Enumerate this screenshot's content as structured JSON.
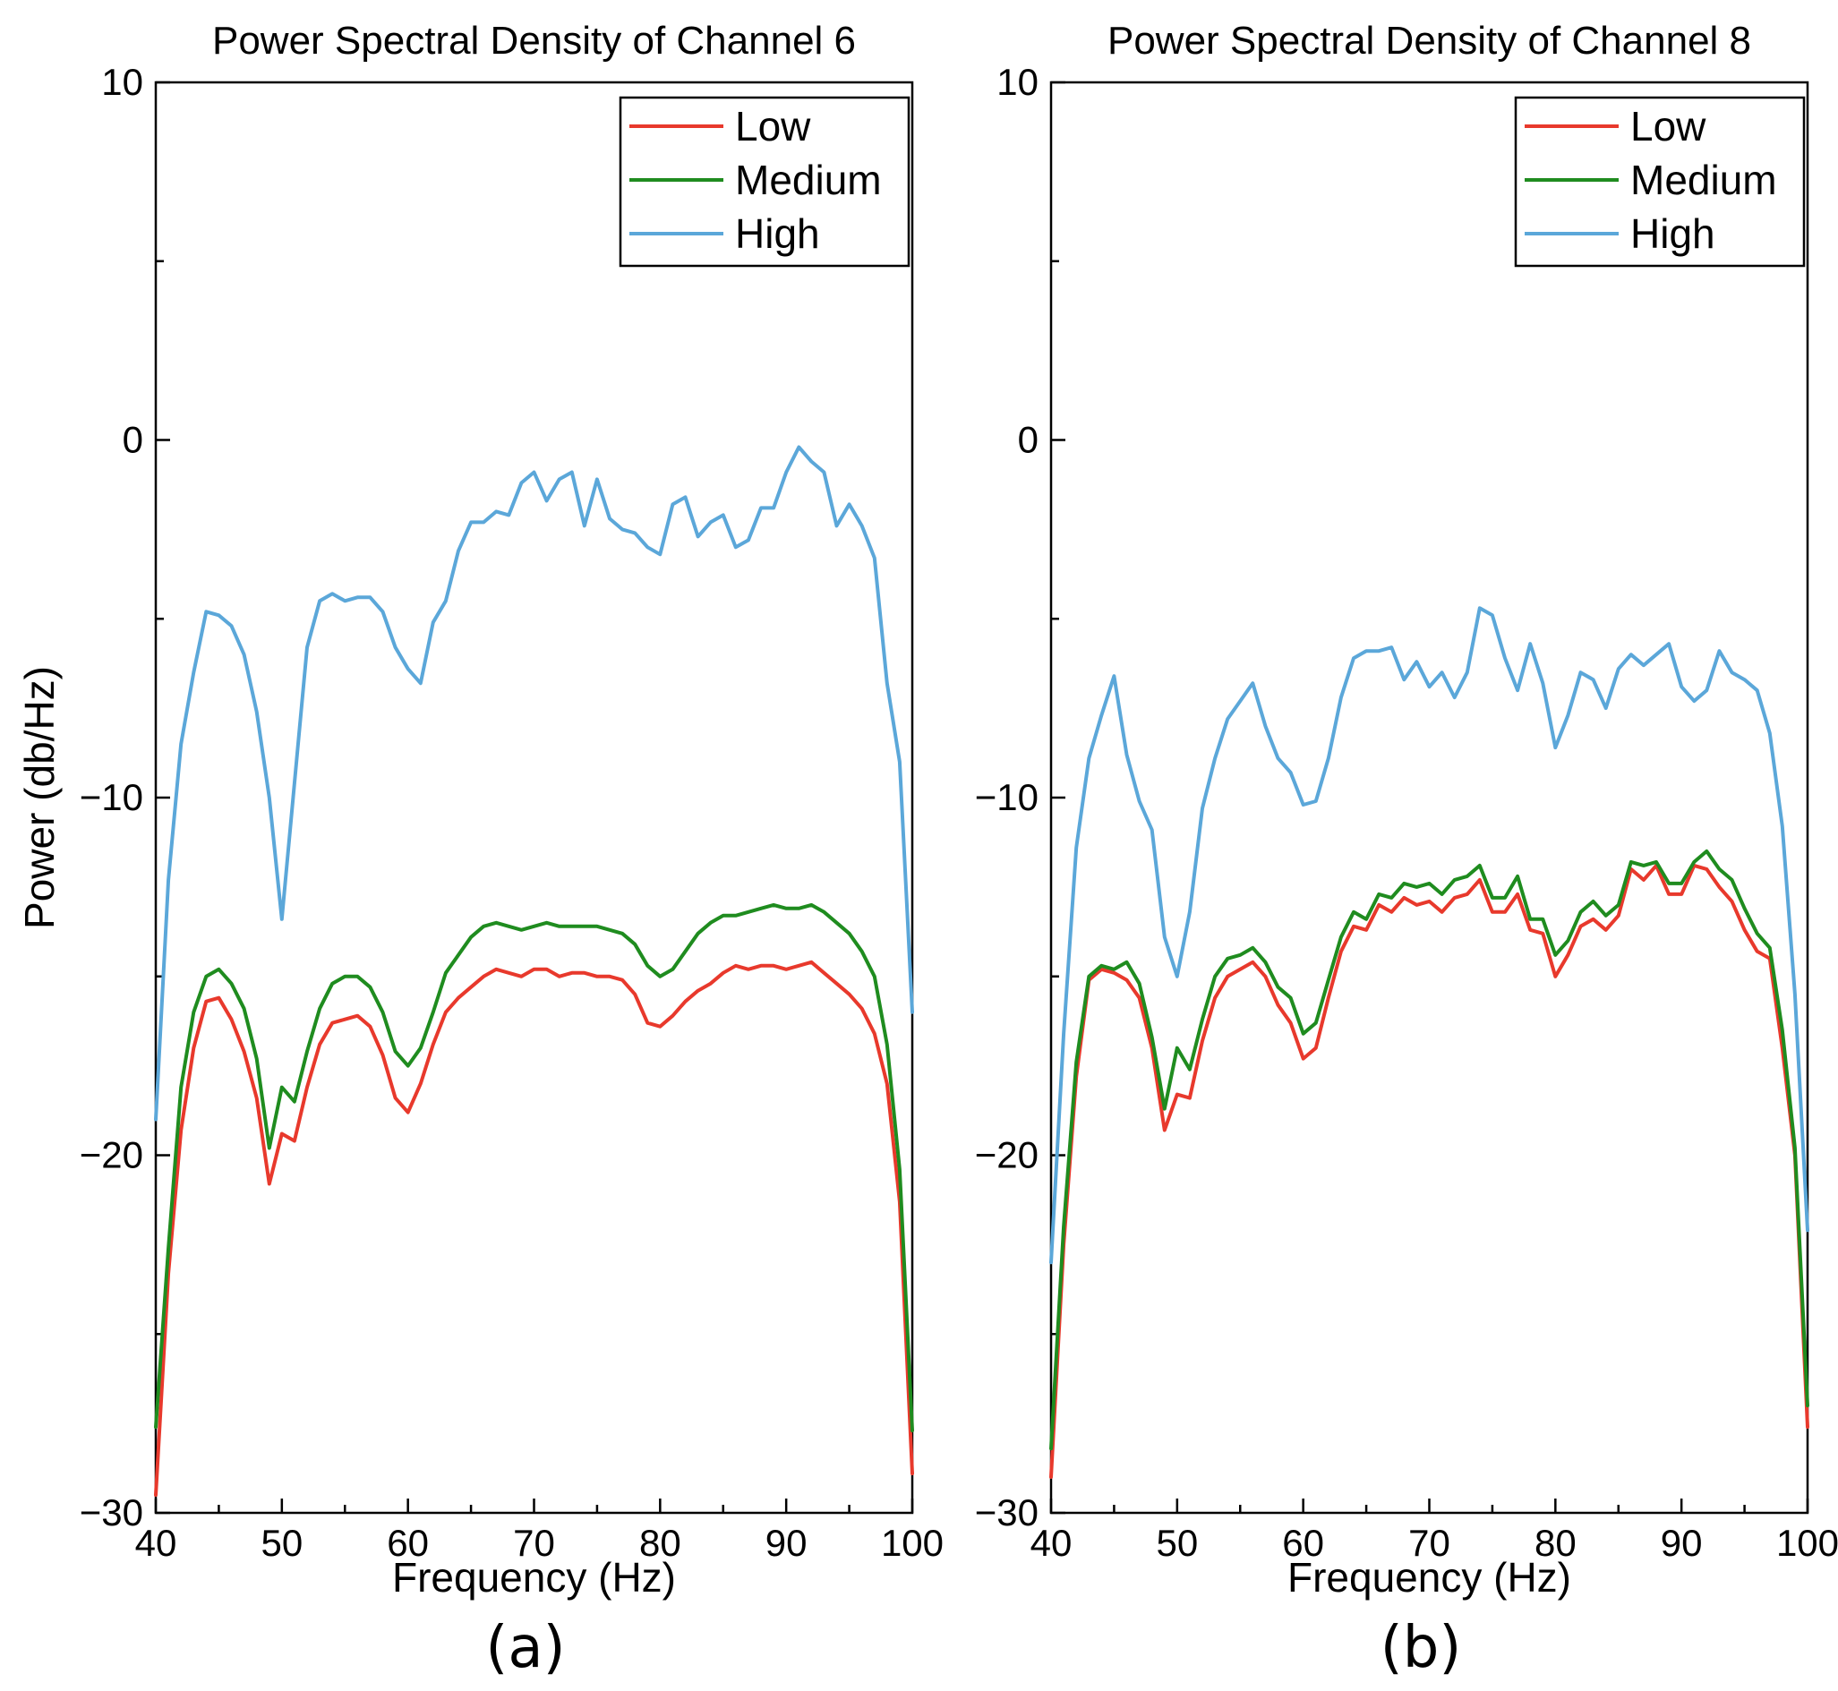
{
  "figure": {
    "panel_labels": [
      "(a)",
      "(b)"
    ]
  },
  "chart_data": [
    {
      "type": "line",
      "title": "Power Spectral Density of Channel 6",
      "xlabel": "Frequency (Hz)",
      "ylabel": "Power (db/Hz)",
      "xlim": [
        40,
        100
      ],
      "ylim": [
        -30,
        10
      ],
      "xticks": [
        40,
        50,
        60,
        70,
        80,
        90,
        100
      ],
      "yticks": [
        -30,
        -20,
        -10,
        0,
        10
      ],
      "ytick_labels": [
        "−30",
        "−20",
        "−10",
        "0",
        "10"
      ],
      "grid": false,
      "legend": "top-right",
      "x": [
        40,
        41,
        42,
        43,
        44,
        45,
        46,
        47,
        48,
        49,
        50,
        51,
        52,
        53,
        54,
        55,
        56,
        57,
        58,
        59,
        60,
        61,
        62,
        63,
        64,
        65,
        66,
        67,
        68,
        69,
        70,
        71,
        72,
        73,
        74,
        75,
        76,
        77,
        78,
        79,
        80,
        81,
        82,
        83,
        84,
        85,
        86,
        87,
        88,
        89,
        90,
        91,
        92,
        93,
        94,
        95,
        96,
        97,
        98,
        99,
        100
      ],
      "series": [
        {
          "name": "Low",
          "color": "#e8392c",
          "values": [
            -29.5,
            -23.3,
            -19.3,
            -17.0,
            -15.7,
            -15.6,
            -16.2,
            -17.1,
            -18.4,
            -20.8,
            -19.4,
            -19.6,
            -18.1,
            -16.9,
            -16.3,
            -16.2,
            -16.1,
            -16.4,
            -17.2,
            -18.4,
            -18.8,
            -18.0,
            -16.9,
            -16.0,
            -15.6,
            -15.3,
            -15.0,
            -14.8,
            -14.9,
            -15.0,
            -14.8,
            -14.8,
            -15.0,
            -14.9,
            -14.9,
            -15.0,
            -15.0,
            -15.1,
            -15.5,
            -16.3,
            -16.4,
            -16.1,
            -15.7,
            -15.4,
            -15.2,
            -14.9,
            -14.7,
            -14.8,
            -14.7,
            -14.7,
            -14.8,
            -14.7,
            -14.6,
            -14.9,
            -15.2,
            -15.5,
            -15.9,
            -16.6,
            -18.0,
            -21.3,
            -28.9
          ]
        },
        {
          "name": "Medium",
          "color": "#1f8c1f",
          "values": [
            -27.6,
            -22.6,
            -18.1,
            -16.0,
            -15.0,
            -14.8,
            -15.2,
            -15.9,
            -17.3,
            -19.8,
            -18.1,
            -18.5,
            -17.1,
            -15.9,
            -15.2,
            -15.0,
            -15.0,
            -15.3,
            -16.0,
            -17.1,
            -17.5,
            -17.0,
            -16.0,
            -14.9,
            -14.4,
            -13.9,
            -13.6,
            -13.5,
            -13.6,
            -13.7,
            -13.6,
            -13.5,
            -13.6,
            -13.6,
            -13.6,
            -13.6,
            -13.7,
            -13.8,
            -14.1,
            -14.7,
            -15.0,
            -14.8,
            -14.3,
            -13.8,
            -13.5,
            -13.3,
            -13.3,
            -13.2,
            -13.1,
            -13.0,
            -13.1,
            -13.1,
            -13.0,
            -13.2,
            -13.5,
            -13.8,
            -14.3,
            -15.0,
            -16.9,
            -20.4,
            -27.7
          ]
        },
        {
          "name": "High",
          "color": "#5ba7d9",
          "values": [
            -19.0,
            -12.3,
            -8.5,
            -6.5,
            -4.8,
            -4.9,
            -5.2,
            -6.0,
            -7.6,
            -10.0,
            -13.4,
            -9.6,
            -5.8,
            -4.5,
            -4.3,
            -4.5,
            -4.4,
            -4.4,
            -4.8,
            -5.8,
            -6.4,
            -6.8,
            -5.1,
            -4.5,
            -3.1,
            -2.3,
            -2.3,
            -2.0,
            -2.1,
            -1.2,
            -0.9,
            -1.7,
            -1.1,
            -0.9,
            -2.4,
            -1.1,
            -2.2,
            -2.5,
            -2.6,
            -3.0,
            -3.2,
            -1.8,
            -1.6,
            -2.7,
            -2.3,
            -2.1,
            -3.0,
            -2.8,
            -1.9,
            -1.9,
            -0.9,
            -0.2,
            -0.6,
            -0.9,
            -2.4,
            -1.8,
            -2.4,
            -3.3,
            -6.8,
            -9.0,
            -16.0
          ]
        }
      ]
    },
    {
      "type": "line",
      "title": "Power Spectral Density of Channel 8",
      "xlabel": "Frequency (Hz)",
      "ylabel": "",
      "xlim": [
        40,
        100
      ],
      "ylim": [
        -30,
        10
      ],
      "xticks": [
        40,
        50,
        60,
        70,
        80,
        90,
        100
      ],
      "yticks": [
        -30,
        -20,
        -10,
        0,
        10
      ],
      "ytick_labels": [
        "−30",
        "−20",
        "−10",
        "0",
        "10"
      ],
      "grid": false,
      "legend": "top-right",
      "x": [
        40,
        41,
        42,
        43,
        44,
        45,
        46,
        47,
        48,
        49,
        50,
        51,
        52,
        53,
        54,
        55,
        56,
        57,
        58,
        59,
        60,
        61,
        62,
        63,
        64,
        65,
        66,
        67,
        68,
        69,
        70,
        71,
        72,
        73,
        74,
        75,
        76,
        77,
        78,
        79,
        80,
        81,
        82,
        83,
        84,
        85,
        86,
        87,
        88,
        89,
        90,
        91,
        92,
        93,
        94,
        95,
        96,
        97,
        98,
        99,
        100
      ],
      "series": [
        {
          "name": "Low",
          "color": "#e8392c",
          "values": [
            -29.0,
            -22.5,
            -17.8,
            -15.1,
            -14.8,
            -14.9,
            -15.1,
            -15.6,
            -17.0,
            -19.3,
            -18.3,
            -18.4,
            -16.8,
            -15.6,
            -15.0,
            -14.8,
            -14.6,
            -15.0,
            -15.8,
            -16.3,
            -17.3,
            -17.0,
            -15.6,
            -14.3,
            -13.6,
            -13.7,
            -13.0,
            -13.2,
            -12.8,
            -13.0,
            -12.9,
            -13.2,
            -12.8,
            -12.7,
            -12.3,
            -13.2,
            -13.2,
            -12.7,
            -13.7,
            -13.8,
            -15.0,
            -14.4,
            -13.6,
            -13.4,
            -13.7,
            -13.3,
            -12.0,
            -12.3,
            -11.9,
            -12.7,
            -12.7,
            -11.9,
            -12.0,
            -12.5,
            -12.9,
            -13.7,
            -14.3,
            -14.5,
            -17.0,
            -20.0,
            -27.6
          ]
        },
        {
          "name": "Medium",
          "color": "#1f8c1f",
          "values": [
            -28.2,
            -22.0,
            -17.4,
            -15.0,
            -14.7,
            -14.8,
            -14.6,
            -15.2,
            -16.7,
            -18.7,
            -17.0,
            -17.6,
            -16.2,
            -15.0,
            -14.5,
            -14.4,
            -14.2,
            -14.6,
            -15.3,
            -15.6,
            -16.6,
            -16.3,
            -15.1,
            -13.9,
            -13.2,
            -13.4,
            -12.7,
            -12.8,
            -12.4,
            -12.5,
            -12.4,
            -12.7,
            -12.3,
            -12.2,
            -11.9,
            -12.8,
            -12.8,
            -12.2,
            -13.4,
            -13.4,
            -14.4,
            -14.0,
            -13.2,
            -12.9,
            -13.3,
            -13.0,
            -11.8,
            -11.9,
            -11.8,
            -12.4,
            -12.4,
            -11.8,
            -11.5,
            -12.0,
            -12.3,
            -13.1,
            -13.8,
            -14.2,
            -16.5,
            -19.8,
            -27.0
          ]
        },
        {
          "name": "High",
          "color": "#5ba7d9",
          "values": [
            -23.0,
            -16.6,
            -11.4,
            -8.9,
            -7.7,
            -6.6,
            -8.8,
            -10.1,
            -10.9,
            -13.9,
            -15.0,
            -13.2,
            -10.3,
            -8.9,
            -7.8,
            -7.3,
            -6.8,
            -8.0,
            -8.9,
            -9.3,
            -10.2,
            -10.1,
            -8.9,
            -7.2,
            -6.1,
            -5.9,
            -5.9,
            -5.8,
            -6.7,
            -6.2,
            -6.9,
            -6.5,
            -7.2,
            -6.5,
            -4.7,
            -4.9,
            -6.1,
            -7.0,
            -5.7,
            -6.8,
            -8.6,
            -7.7,
            -6.5,
            -6.7,
            -7.5,
            -6.4,
            -6.0,
            -6.3,
            -6.0,
            -5.7,
            -6.9,
            -7.3,
            -7.0,
            -5.9,
            -6.5,
            -6.7,
            -7.0,
            -8.2,
            -10.8,
            -15.5,
            -22.1
          ]
        }
      ]
    }
  ]
}
